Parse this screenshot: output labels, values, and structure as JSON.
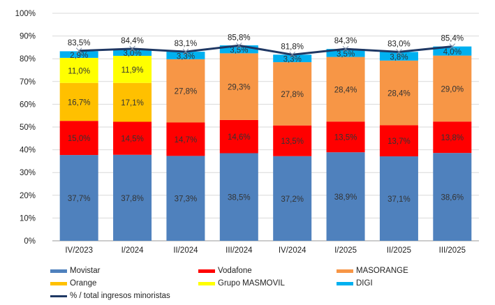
{
  "chart_data": {
    "type": "bar",
    "stacked": true,
    "categories": [
      "IV/2023",
      "I/2024",
      "II/2024",
      "III/2024",
      "IV/2024",
      "I/2025",
      "II/2025",
      "III/2025"
    ],
    "ylim": [
      0,
      100
    ],
    "yticks": [
      "0%",
      "10%",
      "20%",
      "30%",
      "40%",
      "50%",
      "60%",
      "70%",
      "80%",
      "90%",
      "100%"
    ],
    "grid": true,
    "legend_position": "bottom",
    "series": [
      {
        "name": "Movistar",
        "color": "#4f81bd",
        "values": [
          37.7,
          37.8,
          37.3,
          38.5,
          37.2,
          38.9,
          37.1,
          38.6
        ],
        "labels": [
          "37,7%",
          "37,8%",
          "37,3%",
          "38,5%",
          "37,2%",
          "38,9%",
          "37,1%",
          "38,6%"
        ]
      },
      {
        "name": "Vodafone",
        "color": "#ff0000",
        "values": [
          15.0,
          14.5,
          14.7,
          14.6,
          13.5,
          13.5,
          13.7,
          13.8
        ],
        "labels": [
          "15,0%",
          "14,5%",
          "14,7%",
          "14,6%",
          "13,5%",
          "13,5%",
          "13,7%",
          "13,8%"
        ]
      },
      {
        "name": "MASORANGE",
        "color": "#f79646",
        "values": [
          null,
          null,
          27.8,
          29.3,
          27.8,
          28.4,
          28.4,
          29.0
        ],
        "labels": [
          "",
          "",
          "27,8%",
          "29,3%",
          "27,8%",
          "28,4%",
          "28,4%",
          "29,0%"
        ]
      },
      {
        "name": "Orange",
        "color": "#ffc000",
        "values": [
          16.7,
          17.1,
          null,
          null,
          null,
          null,
          null,
          null
        ],
        "labels": [
          "16,7%",
          "17,1%",
          "",
          "",
          "",
          "",
          "",
          ""
        ]
      },
      {
        "name": "Grupo MASMOVIL",
        "color": "#ffff00",
        "values": [
          11.0,
          11.9,
          null,
          null,
          null,
          null,
          null,
          null
        ],
        "labels": [
          "11,0%",
          "11,9%",
          "",
          "",
          "",
          "",
          "",
          ""
        ]
      },
      {
        "name": "DIGI",
        "color": "#00b0f0",
        "values": [
          2.9,
          3.0,
          3.3,
          3.5,
          3.3,
          3.5,
          3.8,
          4.0
        ],
        "labels": [
          "2,9%",
          "3,0%",
          "3,3%",
          "3,5%",
          "3,3%",
          "3,5%",
          "3,8%",
          "4,0%"
        ]
      }
    ],
    "line": {
      "name": "% / total ingresos minoristas",
      "color": "#1f3864",
      "values": [
        83.5,
        84.4,
        83.1,
        85.8,
        81.8,
        84.3,
        83.0,
        85.4
      ],
      "labels": [
        "83,5%",
        "84,4%",
        "83,1%",
        "85,8%",
        "81,8%",
        "84,3%",
        "83,0%",
        "85,4%"
      ]
    }
  }
}
